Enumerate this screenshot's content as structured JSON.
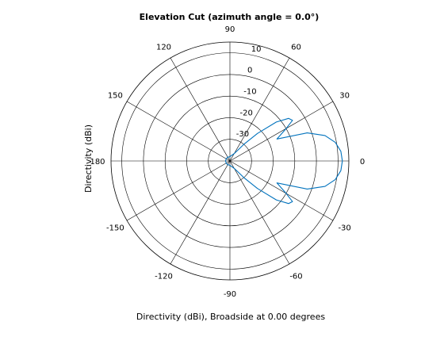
{
  "chart_data": {
    "type": "polar",
    "title": "Elevation Cut (azimuth angle = 0.0°)",
    "xlabel": "Directivity (dBi), Broadside at 0.00 degrees",
    "ylabel": "Directivity (dBi)",
    "angle_ticks": [
      "0",
      "30",
      "60",
      "90",
      "120",
      "150",
      "180",
      "-150",
      "-120",
      "-90",
      "-60",
      "-30"
    ],
    "angle_tick_values_deg": [
      0,
      30,
      60,
      90,
      120,
      150,
      180,
      -150,
      -120,
      -90,
      -60,
      -30
    ],
    "radial_ticks": [
      "-30",
      "-20",
      "-10",
      "0",
      "10"
    ],
    "radial_tick_values": [
      -30,
      -20,
      -10,
      0,
      10
    ],
    "rlim": [
      -40,
      15
    ],
    "grid": true,
    "series": [
      {
        "color": "#0072bd",
        "angle_deg": [
          0,
          5,
          10,
          15,
          20,
          25,
          30,
          33,
          36,
          40,
          45,
          50,
          60,
          90,
          120,
          150,
          180,
          -150,
          -120,
          -90,
          -60,
          -50,
          -45,
          -40,
          -36,
          -33,
          -30,
          -25,
          -20,
          -15,
          -10,
          -5,
          0
        ],
        "directivity_dbi": [
          12,
          11.5,
          9.5,
          5.5,
          -2,
          -16,
          -10,
          -5.5,
          -6.5,
          -12,
          -22,
          -30,
          -36,
          -38,
          -38,
          -38,
          -38,
          -38,
          -38,
          -38,
          -36,
          -30,
          -22,
          -12,
          -6.5,
          -5.5,
          -10,
          -16,
          -2,
          5.5,
          9.5,
          11.5,
          12
        ]
      }
    ]
  },
  "colors": {
    "pattern": "#0072bd",
    "grid": "#000000"
  }
}
